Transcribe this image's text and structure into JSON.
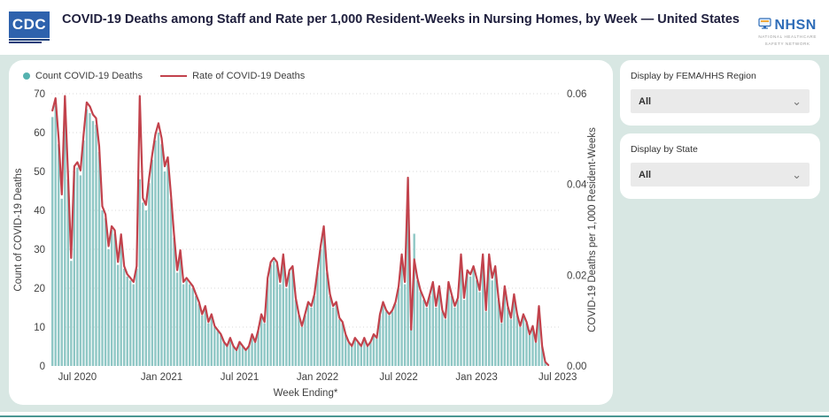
{
  "header": {
    "title": "COVID-19 Deaths among Staff and Rate per 1,000 Resident-Weeks in Nursing Homes, by Week — United States",
    "cdc_logo_text": "CDC",
    "nhsn_name": "NHSN",
    "nhsn_subtitle_line1": "NATIONAL HEALTHCARE",
    "nhsn_subtitle_line2": "SAFETY NETWORK"
  },
  "filters": [
    {
      "label": "Display by FEMA/HHS Region",
      "value": "All"
    },
    {
      "label": "Display by State",
      "value": "All"
    }
  ],
  "chart_data": {
    "type": "bar",
    "subtype": "weekly bars with overlaid rate line, dual y-axes",
    "legend": [
      {
        "label": "Count COVID-19 Deaths",
        "marker": "dot",
        "color": "#55b2af",
        "bar_color": "#8fc7c5"
      },
      {
        "label": "Rate of COVID-19 Deaths",
        "marker": "line",
        "color": "#c2424c"
      }
    ],
    "left_axis": {
      "title": "Count of COVID-19 Deaths",
      "min": 0,
      "max": 70,
      "ticks": [
        0,
        10,
        20,
        30,
        40,
        50,
        60,
        70
      ]
    },
    "right_axis": {
      "title": "COVID-19 Deaths per 1,000 Resident-Weeks",
      "min": 0,
      "max": 0.06,
      "ticks": [
        "0.00",
        "0.02",
        "0.04",
        "0.06"
      ]
    },
    "x_axis": {
      "title": "Week Ending*",
      "ticks": [
        {
          "label": "Jul 2020",
          "week": 9
        },
        {
          "label": "Jan 2021",
          "week": 36
        },
        {
          "label": "Jul 2021",
          "week": 61
        },
        {
          "label": "Jan 2022",
          "week": 86
        },
        {
          "label": "Jul 2022",
          "week": 112
        },
        {
          "label": "Jan 2023",
          "week": 137
        },
        {
          "label": "Jul 2023",
          "week": 163
        }
      ],
      "total_week_slots": 163
    },
    "grid": "dotted horizontal lines every 10 counts",
    "counts": [
      64,
      67,
      57,
      43,
      69,
      48,
      27,
      50,
      51,
      49,
      58,
      66,
      65,
      63,
      62,
      55,
      40,
      38,
      30,
      35,
      34,
      26,
      33,
      25,
      23,
      22,
      21,
      25,
      48,
      42,
      40,
      47,
      53,
      58,
      60,
      57,
      50,
      52,
      43,
      33,
      24,
      28,
      21,
      22,
      21,
      20,
      18,
      16,
      13,
      15,
      11,
      13,
      10,
      9,
      8,
      6,
      5,
      7,
      5,
      4,
      6,
      5,
      4,
      5,
      8,
      6,
      9,
      13,
      11,
      22,
      26,
      27,
      26,
      21,
      28,
      20,
      24,
      25,
      17,
      13,
      10,
      13,
      16,
      15,
      18,
      24,
      30,
      35,
      24,
      18,
      15,
      16,
      12,
      11,
      8,
      6,
      5,
      7,
      6,
      5,
      7,
      5,
      6,
      8,
      7,
      13,
      16,
      14,
      13,
      14,
      16,
      20,
      28,
      21,
      48,
      12,
      34,
      22,
      19,
      17,
      15,
      18,
      21,
      15,
      20,
      14,
      12,
      21,
      18,
      15,
      17,
      28,
      17,
      24,
      23,
      25,
      22,
      19,
      28,
      14,
      28,
      22,
      25,
      17,
      11,
      20,
      15,
      12,
      18,
      13,
      10,
      13,
      11,
      8,
      10,
      6,
      15,
      5,
      1,
      0
    ],
    "rates": [
      0.0563,
      0.059,
      0.0502,
      0.0378,
      0.0595,
      0.0422,
      0.0238,
      0.044,
      0.0449,
      0.0431,
      0.051,
      0.0581,
      0.0572,
      0.0554,
      0.0546,
      0.0484,
      0.0352,
      0.0334,
      0.0264,
      0.0308,
      0.0299,
      0.0229,
      0.029,
      0.022,
      0.0202,
      0.0194,
      0.0185,
      0.022,
      0.0595,
      0.037,
      0.0355,
      0.0415,
      0.0466,
      0.051,
      0.0535,
      0.0502,
      0.044,
      0.046,
      0.0378,
      0.029,
      0.0211,
      0.0255,
      0.0185,
      0.0194,
      0.0185,
      0.0176,
      0.0158,
      0.0141,
      0.0114,
      0.0132,
      0.0097,
      0.0114,
      0.0088,
      0.0079,
      0.007,
      0.0053,
      0.0044,
      0.0062,
      0.0044,
      0.0035,
      0.0053,
      0.0044,
      0.0035,
      0.0044,
      0.007,
      0.0053,
      0.0079,
      0.0114,
      0.0097,
      0.0194,
      0.0229,
      0.0238,
      0.0229,
      0.0185,
      0.0246,
      0.0176,
      0.0211,
      0.022,
      0.015,
      0.0114,
      0.0088,
      0.0114,
      0.0141,
      0.0132,
      0.0158,
      0.0211,
      0.0264,
      0.0308,
      0.0211,
      0.0158,
      0.0132,
      0.0141,
      0.0106,
      0.0097,
      0.007,
      0.0053,
      0.0044,
      0.0062,
      0.0053,
      0.0044,
      0.0062,
      0.0044,
      0.0053,
      0.007,
      0.0062,
      0.0114,
      0.0141,
      0.0123,
      0.0114,
      0.0123,
      0.0141,
      0.0176,
      0.0246,
      0.0185,
      0.0415,
      0.008,
      0.0235,
      0.0194,
      0.0167,
      0.015,
      0.0132,
      0.0158,
      0.0185,
      0.0132,
      0.0176,
      0.0123,
      0.0106,
      0.0185,
      0.0158,
      0.0132,
      0.015,
      0.0246,
      0.015,
      0.0211,
      0.0202,
      0.022,
      0.0194,
      0.0167,
      0.0246,
      0.0123,
      0.0246,
      0.0194,
      0.022,
      0.015,
      0.0097,
      0.0176,
      0.0132,
      0.0106,
      0.0158,
      0.0114,
      0.0088,
      0.0114,
      0.0097,
      0.007,
      0.0088,
      0.0053,
      0.0132,
      0.0044,
      0.0009,
      0.0002
    ]
  },
  "footer": {
    "accent_color": "#4a9793"
  }
}
